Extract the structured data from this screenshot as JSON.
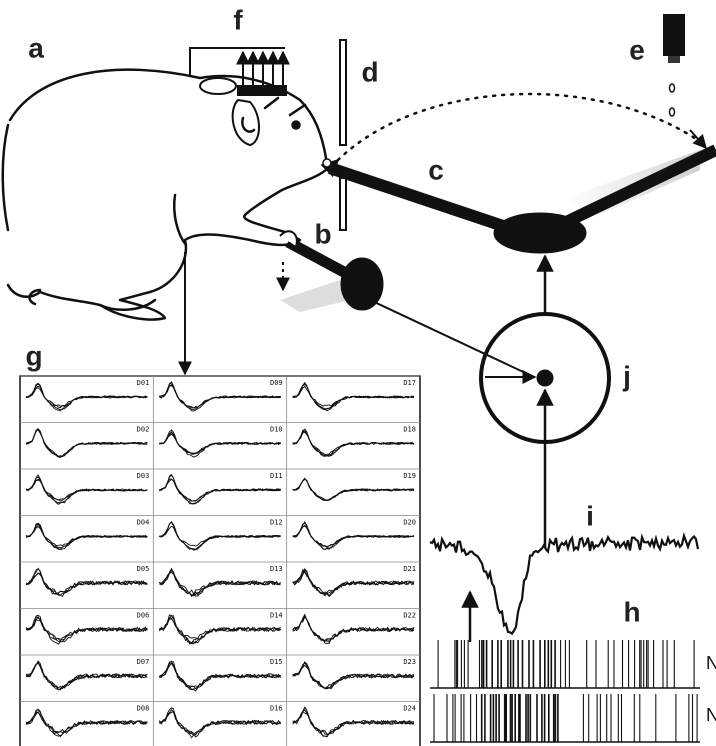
{
  "labels": {
    "a": "a",
    "b": "b",
    "c": "c",
    "d": "d",
    "e": "e",
    "f": "f",
    "g": "g",
    "h": "h",
    "i": "i",
    "j": "j"
  },
  "raster_labels": [
    "N",
    "N"
  ],
  "channels": [
    [
      "D01",
      "D09",
      "D17"
    ],
    [
      "D02",
      "D10",
      "D18"
    ],
    [
      "D03",
      "D11",
      "D19"
    ],
    [
      "D04",
      "D12",
      "D20"
    ],
    [
      "D05",
      "D13",
      "D21"
    ],
    [
      "D06",
      "D14",
      "D22"
    ],
    [
      "D07",
      "D15",
      "D23"
    ],
    [
      "D08",
      "D16",
      "D24"
    ]
  ]
}
